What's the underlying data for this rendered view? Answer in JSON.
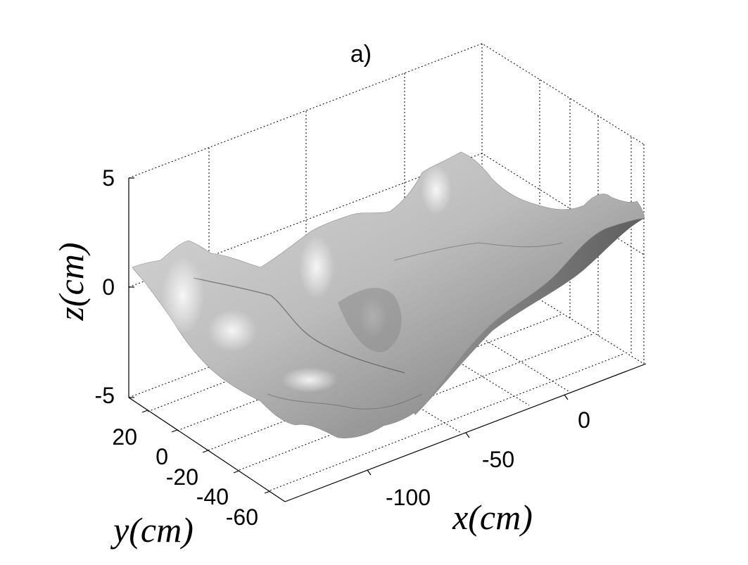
{
  "chart_data": {
    "type": "surface",
    "title": "a)",
    "xlabel": "x(cm)",
    "ylabel": "y(cm)",
    "zlabel": "z(cm)",
    "x_ticks": [
      -100,
      -50,
      0
    ],
    "y_ticks": [
      20,
      0,
      -20,
      -40,
      -60
    ],
    "z_ticks": [
      5,
      0,
      -5
    ],
    "x_tick_labels": [
      "-100",
      "-50",
      "0"
    ],
    "y_tick_labels": [
      "20",
      "0",
      "-20",
      "-40",
      "-60"
    ],
    "z_tick_labels": [
      "5",
      "0",
      "-5"
    ],
    "xlim": [
      -130,
      30
    ],
    "ylim": [
      -70,
      30
    ],
    "zlim": [
      -5,
      5
    ],
    "grid": true,
    "surface_color": "#c8c8c8"
  }
}
